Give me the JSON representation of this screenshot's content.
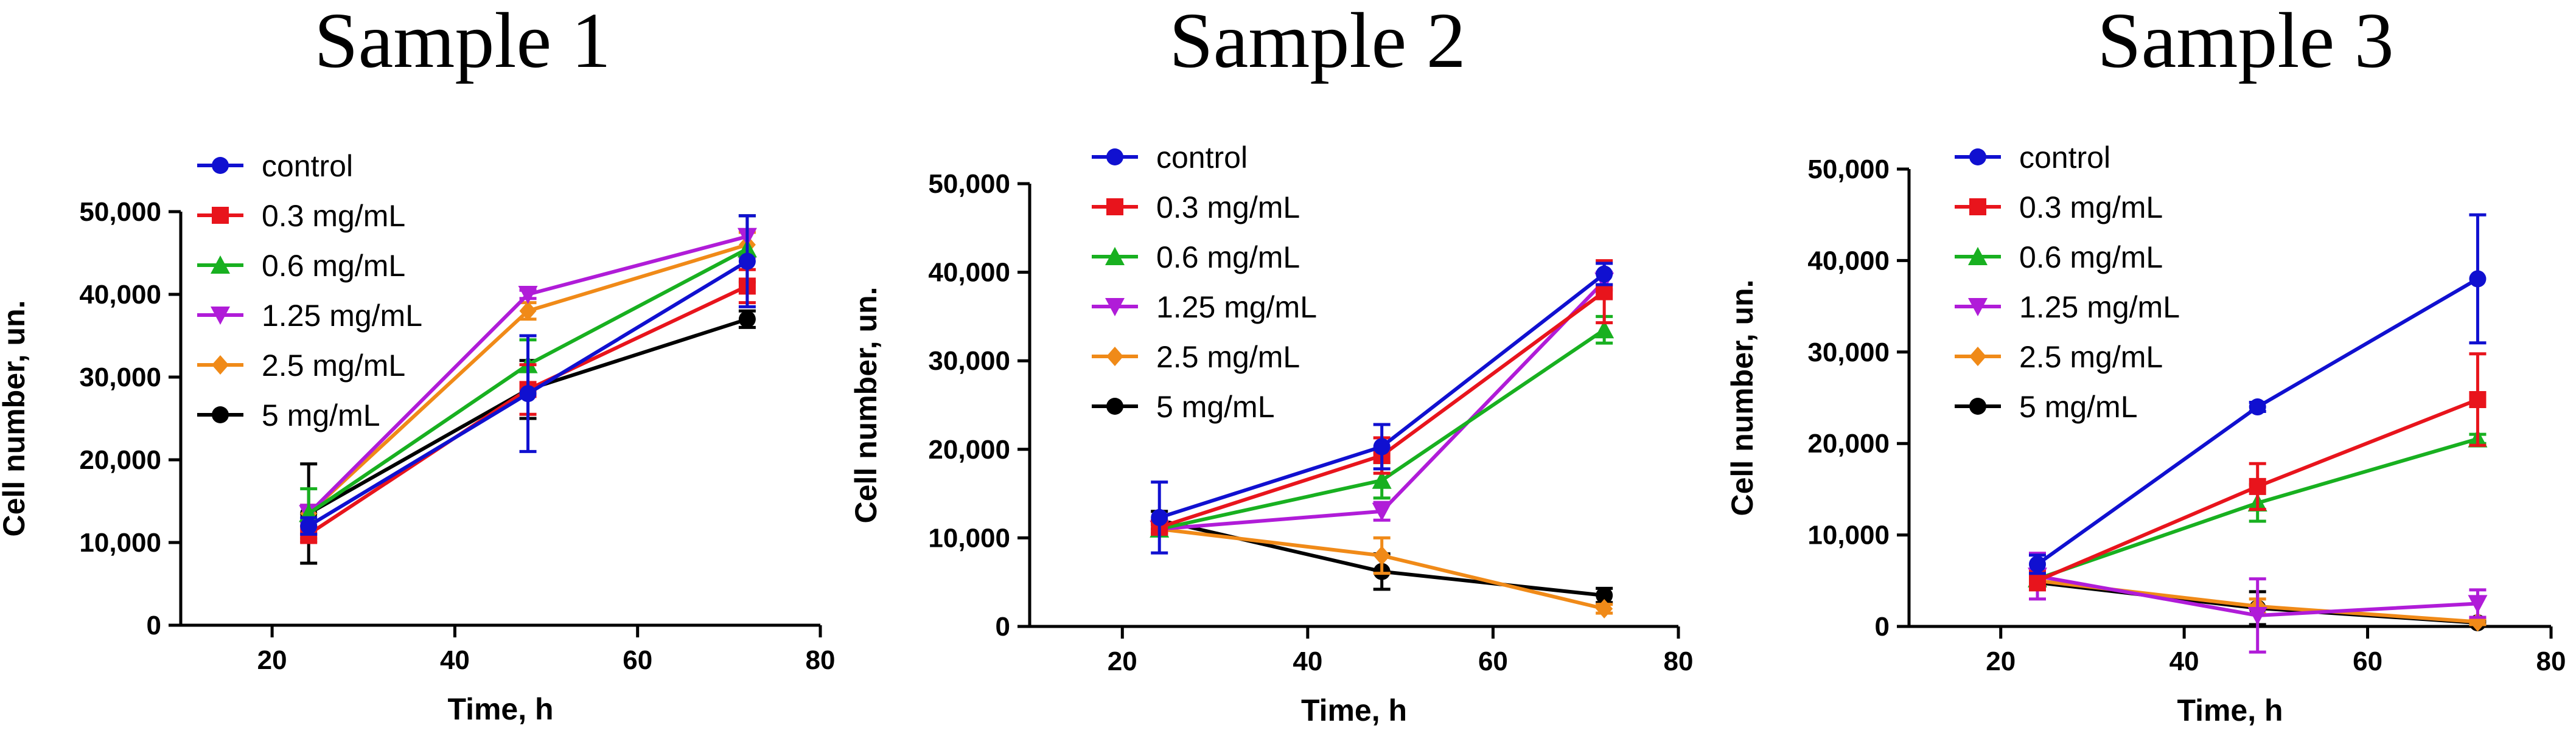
{
  "chart_data": [
    {
      "type": "line",
      "title": "Sample 1",
      "xlabel": "Time, h",
      "ylabel": "Cell number, un.",
      "xlim": [
        10,
        80
      ],
      "ylim": [
        0,
        55000
      ],
      "xticks": [
        20,
        40,
        60,
        80
      ],
      "yticks": [
        0,
        10000,
        20000,
        30000,
        40000,
        50000
      ],
      "xtick_labels": [
        "20",
        "40",
        "60",
        "80"
      ],
      "ytick_labels": [
        "0",
        "10,000",
        "20,000",
        "30,000",
        "40,000",
        "50,000"
      ],
      "x": [
        24,
        48,
        72
      ],
      "legend_position": "top-left",
      "series": [
        {
          "name": "control",
          "values": [
            12000,
            28000,
            44000
          ],
          "errors": [
            1000,
            7000,
            5500
          ],
          "color": "#1010d0",
          "marker": "circle"
        },
        {
          "name": "0.3 mg/mL",
          "values": [
            11000,
            28500,
            41000
          ],
          "errors": [
            1000,
            3000,
            2000
          ],
          "color": "#e8141c",
          "marker": "square"
        },
        {
          "name": "0.6 mg/mL",
          "values": [
            13500,
            31500,
            45500
          ],
          "errors": [
            3000,
            3000,
            4000
          ],
          "color": "#18b020",
          "marker": "triangle-up"
        },
        {
          "name": "1.25 mg/mL",
          "values": [
            13500,
            40000,
            47000
          ],
          "errors": [
            1000,
            500,
            2500
          ],
          "color": "#b01cd8",
          "marker": "triangle-down"
        },
        {
          "name": "2.5 mg/mL",
          "values": [
            13500,
            38000,
            46000
          ],
          "errors": [
            1000,
            1000,
            1500
          ],
          "color": "#f08a18",
          "marker": "diamond"
        },
        {
          "name": "5 mg/mL",
          "values": [
            13500,
            28500,
            37000
          ],
          "errors": [
            6000,
            3500,
            1000
          ],
          "color": "#000000",
          "marker": "circle"
        }
      ]
    },
    {
      "type": "line",
      "title": "Sample 2",
      "xlabel": "Time, h",
      "ylabel": "Cell number, un.",
      "xlim": [
        10,
        80
      ],
      "ylim": [
        0,
        50000
      ],
      "xticks": [
        20,
        40,
        60,
        80
      ],
      "yticks": [
        0,
        10000,
        20000,
        30000,
        40000,
        50000
      ],
      "xtick_labels": [
        "20",
        "40",
        "60",
        "80"
      ],
      "ytick_labels": [
        "0",
        "10,000",
        "20,000",
        "30,000",
        "40,000",
        "50,000"
      ],
      "x": [
        24,
        48,
        72
      ],
      "legend_position": "top-left",
      "series": [
        {
          "name": "control",
          "values": [
            12300,
            20300,
            39800
          ],
          "errors": [
            4000,
            2500,
            1200
          ],
          "color": "#1010d0",
          "marker": "circle"
        },
        {
          "name": "0.3 mg/mL",
          "values": [
            11200,
            19300,
            37800
          ],
          "errors": [
            600,
            2000,
            3500
          ],
          "color": "#e8141c",
          "marker": "square"
        },
        {
          "name": "0.6 mg/mL",
          "values": [
            11000,
            16500,
            33500
          ],
          "errors": [
            500,
            2000,
            1500
          ],
          "color": "#18b020",
          "marker": "triangle-up"
        },
        {
          "name": "1.25 mg/mL",
          "values": [
            11000,
            13000,
            39000
          ],
          "errors": [
            500,
            1000,
            1000
          ],
          "color": "#b01cd8",
          "marker": "triangle-down"
        },
        {
          "name": "2.5 mg/mL",
          "values": [
            11000,
            8000,
            2000
          ],
          "errors": [
            500,
            2000,
            500
          ],
          "color": "#f08a18",
          "marker": "diamond"
        },
        {
          "name": "5 mg/mL",
          "values": [
            12000,
            6200,
            3500
          ],
          "errors": [
            1000,
            2000,
            800
          ],
          "color": "#000000",
          "marker": "circle"
        }
      ]
    },
    {
      "type": "line",
      "title": "Sample 3",
      "xlabel": "Time, h",
      "ylabel": "Cell number, un.",
      "xlim": [
        10,
        80
      ],
      "ylim": [
        0,
        50000
      ],
      "xticks": [
        20,
        40,
        60,
        80
      ],
      "yticks": [
        0,
        10000,
        20000,
        30000,
        40000,
        50000
      ],
      "xtick_labels": [
        "20",
        "40",
        "60",
        "80"
      ],
      "ytick_labels": [
        "0",
        "10,000",
        "20,000",
        "30,000",
        "40,000",
        "50,000"
      ],
      "x": [
        24,
        48,
        72
      ],
      "legend_position": "top-left",
      "series": [
        {
          "name": "control",
          "values": [
            6800,
            24000,
            38000
          ],
          "errors": [
            1000,
            500,
            7000
          ],
          "color": "#1010d0",
          "marker": "circle"
        },
        {
          "name": "0.3 mg/mL",
          "values": [
            5000,
            15300,
            24800
          ],
          "errors": [
            1000,
            2500,
            5000
          ],
          "color": "#e8141c",
          "marker": "square"
        },
        {
          "name": "0.6 mg/mL",
          "values": [
            5200,
            13500,
            20500
          ],
          "errors": [
            800,
            2000,
            500
          ],
          "color": "#18b020",
          "marker": "triangle-up"
        },
        {
          "name": "1.25 mg/mL",
          "values": [
            5500,
            1200,
            2500
          ],
          "errors": [
            2500,
            4000,
            1500
          ],
          "color": "#b01cd8",
          "marker": "triangle-down"
        },
        {
          "name": "2.5 mg/mL",
          "values": [
            5000,
            2200,
            500
          ],
          "errors": [
            500,
            800,
            300
          ],
          "color": "#f08a18",
          "marker": "diamond"
        },
        {
          "name": "5 mg/mL",
          "values": [
            4800,
            2000,
            400
          ],
          "errors": [
            500,
            1800,
            300
          ],
          "color": "#000000",
          "marker": "circle"
        }
      ]
    }
  ]
}
